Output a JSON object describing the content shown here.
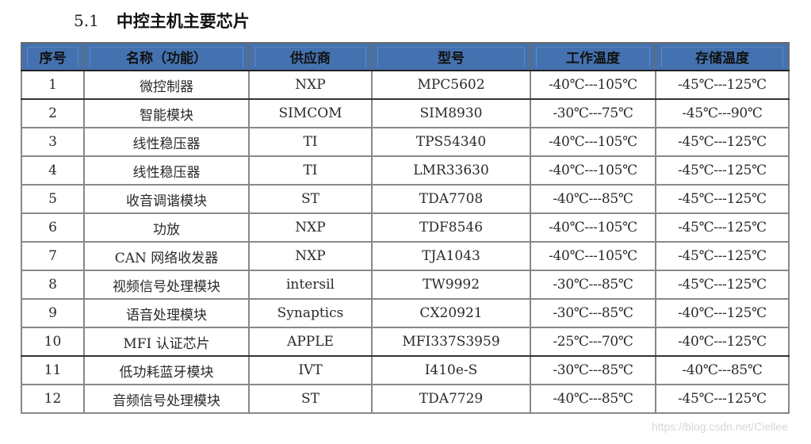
{
  "heading": {
    "number": "5.1",
    "title": "中控主机主要芯片"
  },
  "table": {
    "header_color": "#4472b0",
    "columns": [
      "序号",
      "名称（功能）",
      "供应商",
      "型号",
      "工作温度",
      "存储温度"
    ],
    "rows": [
      [
        "1",
        "微控制器",
        "NXP",
        "MPC5602",
        "-40℃---105℃",
        "-45℃---125℃"
      ],
      [
        "2",
        "智能模块",
        "SIMCOM",
        "SIM8930",
        "-30℃---75℃",
        "-45℃---90℃"
      ],
      [
        "3",
        "线性稳压器",
        "TI",
        "TPS54340",
        "-40℃---105℃",
        "-45℃---125℃"
      ],
      [
        "4",
        "线性稳压器",
        "TI",
        "LMR33630",
        "-40℃---105℃",
        "-45℃---125℃"
      ],
      [
        "5",
        "收音调谐模块",
        "ST",
        "TDA7708",
        "-40℃---85℃",
        "-45℃---125℃"
      ],
      [
        "6",
        "功放",
        "NXP",
        "TDF8546",
        "-40℃---105℃",
        "-45℃---125℃"
      ],
      [
        "7",
        "CAN 网络收发器",
        "NXP",
        "TJA1043",
        "-40℃---105℃",
        "-45℃---125℃"
      ],
      [
        "8",
        "视频信号处理模块",
        "intersil",
        "TW9992",
        "-30℃---85℃",
        "-45℃---125℃"
      ],
      [
        "9",
        "语音处理模块",
        "Synaptics",
        "CX20921",
        "-30℃---85℃",
        "-40℃---125℃"
      ],
      [
        "10",
        "MFI 认证芯片",
        "APPLE",
        "MFI337S3959",
        "-25℃---70℃",
        "-40℃---125℃"
      ],
      [
        "11",
        "低功耗蓝牙模块",
        "IVT",
        "I410e-S",
        "-30℃---85℃",
        "-40℃---85℃"
      ],
      [
        "12",
        "音频信号处理模块",
        "ST",
        "TDA7729",
        "-40℃---85℃",
        "-45℃---125℃"
      ]
    ]
  },
  "watermark": "https://blog.csdn.net/Ciellee"
}
